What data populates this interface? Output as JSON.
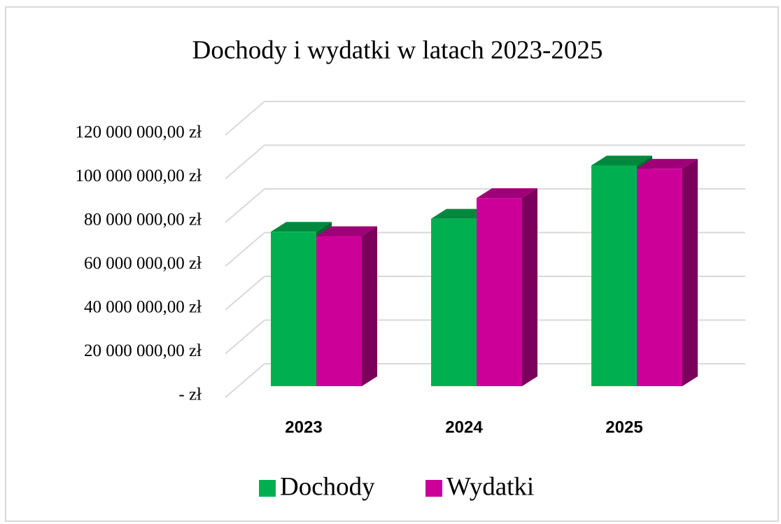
{
  "chart_data": {
    "type": "bar3d",
    "title": "Dochody  i wydatki  w latach 2023-2025",
    "categories": [
      "2023",
      "2024",
      "2025"
    ],
    "series": [
      {
        "name": "Dochody",
        "color": "#00b050",
        "values": [
          71000000,
          77000000,
          101500000
        ]
      },
      {
        "name": "Wydatki",
        "color": "#cc0099",
        "values": [
          69000000,
          86500000,
          100000000
        ]
      }
    ],
    "ylim": [
      0,
      120000000
    ],
    "yticks": [
      {
        "value": 0,
        "label": "-   zł"
      },
      {
        "value": 20000000,
        "label": "20 000 000,00 zł"
      },
      {
        "value": 40000000,
        "label": "40 000 000,00 zł"
      },
      {
        "value": 60000000,
        "label": "60 000 000,00 zł"
      },
      {
        "value": 80000000,
        "label": "80 000 000,00 zł"
      },
      {
        "value": 100000000,
        "label": "100 000 000,00 zł"
      },
      {
        "value": 120000000,
        "label": "120 000 000,00 zł"
      }
    ],
    "grid": true,
    "legend": "bottom"
  }
}
